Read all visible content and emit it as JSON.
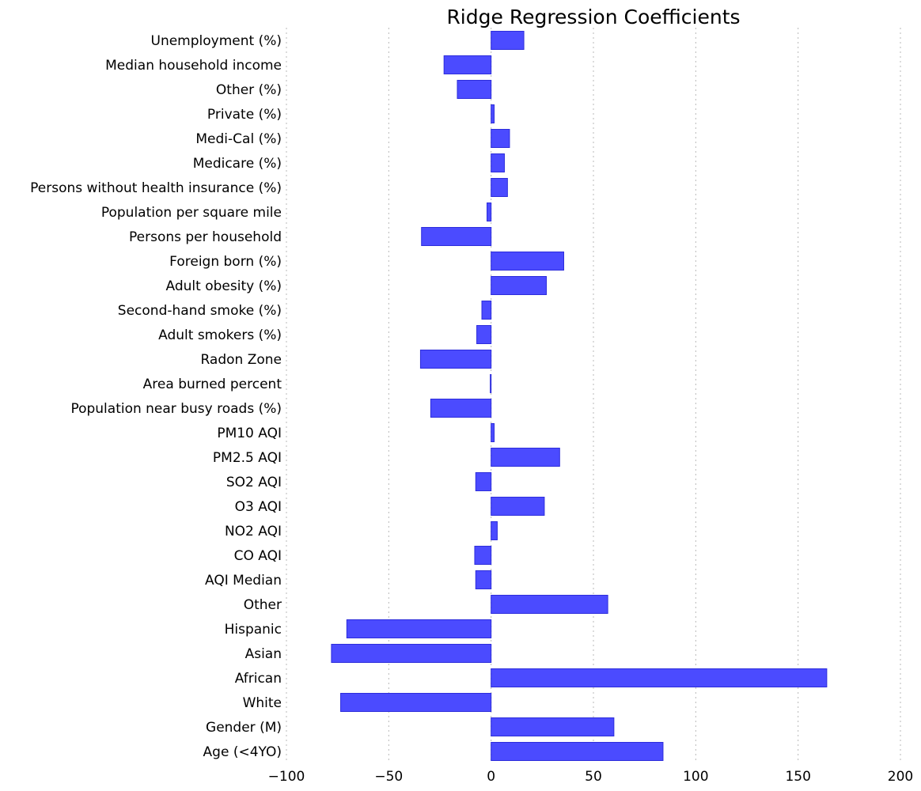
{
  "chart_data": {
    "type": "bar",
    "orientation": "horizontal",
    "title": "Ridge Regression Coefficients",
    "xlabel": "",
    "ylabel": "",
    "xlim": [
      -100,
      200
    ],
    "x_ticks": [
      -100,
      -50,
      0,
      50,
      100,
      150,
      200
    ],
    "x_tick_labels": [
      "−100",
      "−50",
      "0",
      "50",
      "100",
      "150",
      "200"
    ],
    "grid": "vertical dotted",
    "bar_color": "#4b4bff",
    "bar_edge_color": "#2d2ddb",
    "grid_color": "#b8b8b8",
    "categories": [
      "Unemployment (%)",
      "Median household income",
      "Other (%)",
      "Private (%)",
      "Medi-Cal (%)",
      "Medicare (%)",
      "Persons without health insurance (%)",
      "Population per square mile",
      "Persons per household",
      "Foreign born (%)",
      "Adult obesity (%)",
      "Second-hand smoke (%)",
      "Adult smokers (%)",
      "Radon Zone",
      "Area burned percent",
      "Population near busy roads (%)",
      "PM10 AQI",
      "PM2.5 AQI",
      "SO2 AQI",
      "O3 AQI",
      "NO2 AQI",
      "CO AQI",
      "AQI Median",
      "Other",
      "Hispanic",
      "Asian",
      "African",
      "White",
      "Gender (M)",
      "Age (<4YO)"
    ],
    "values": [
      16,
      -23,
      -16.5,
      1.5,
      9,
      6.5,
      8,
      -2,
      -34,
      35.5,
      27,
      -4.5,
      -7,
      -34.5,
      -0.4,
      -29.5,
      1.5,
      33.5,
      -7.5,
      26,
      3,
      -8,
      -7.5,
      57,
      -70.5,
      -78,
      164,
      -73.5,
      60,
      84
    ]
  }
}
